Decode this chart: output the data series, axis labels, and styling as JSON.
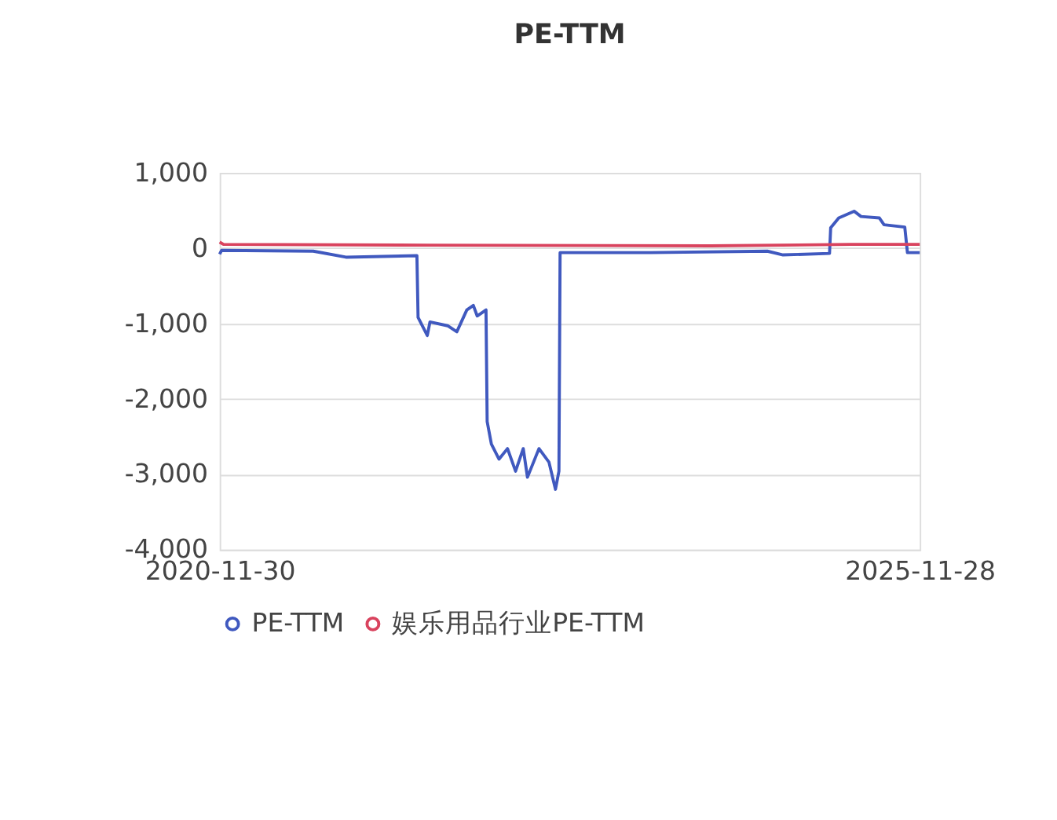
{
  "chart_data": {
    "type": "line",
    "title": "PE-TTM",
    "xlim": [
      "2020-11-30",
      "2025-11-28"
    ],
    "xticks": [
      "2020-11-30",
      "2025-11-28"
    ],
    "ylim": [
      -4000,
      1000
    ],
    "yticks": [
      {
        "value": -4000,
        "label": "-4,000"
      },
      {
        "value": -3000,
        "label": "-3,000"
      },
      {
        "value": -2000,
        "label": "-2,000"
      },
      {
        "value": -1000,
        "label": "-1,000"
      },
      0,
      {
        "value": 1000,
        "label": "1,000"
      }
    ],
    "grid": "y",
    "legend": "bottom",
    "line_style": "solid",
    "series": [
      {
        "name": "PE-TTM",
        "color": "#4059bf",
        "x": [
          "2020-11-30",
          "2020-12-05",
          "2021-08-01",
          "2021-10-25",
          "2022-04-28",
          "2022-05-01",
          "2022-05-25",
          "2022-06-01",
          "2022-07-17",
          "2022-08-10",
          "2022-09-05",
          "2022-09-22",
          "2022-10-02",
          "2022-10-25",
          "2022-10-28",
          "2022-11-08",
          "2022-11-28",
          "2022-12-20",
          "2023-01-10",
          "2023-01-30",
          "2023-02-10",
          "2023-03-12",
          "2023-04-07",
          "2023-04-24",
          "2023-05-03",
          "2023-05-06",
          "2023-12-28",
          "2024-10-27",
          "2024-12-07",
          "2025-04-07",
          "2025-04-10",
          "2025-05-01",
          "2025-06-10",
          "2025-06-28",
          "2025-08-15",
          "2025-08-27",
          "2025-10-20",
          "2025-10-27",
          "2025-11-28"
        ],
        "values": [
          -80,
          -30,
          -40,
          -120,
          -100,
          -920,
          -1160,
          -980,
          -1030,
          -1110,
          -820,
          -760,
          -900,
          -820,
          -2300,
          -2600,
          -2800,
          -2660,
          -2960,
          -2660,
          -3040,
          -2660,
          -2840,
          -3200,
          -2960,
          -60,
          -60,
          -40,
          -90,
          -70,
          270,
          400,
          490,
          420,
          400,
          310,
          280,
          -60,
          -60
        ]
      },
      {
        "name": "娱乐用品行业PE-TTM",
        "color": "#d9435e",
        "x": [
          "2020-11-30",
          "2020-12-10",
          "2022-06-01",
          "2024-06-01",
          "2025-06-01",
          "2025-11-28"
        ],
        "values": [
          80,
          50,
          40,
          30,
          50,
          50
        ]
      }
    ]
  }
}
